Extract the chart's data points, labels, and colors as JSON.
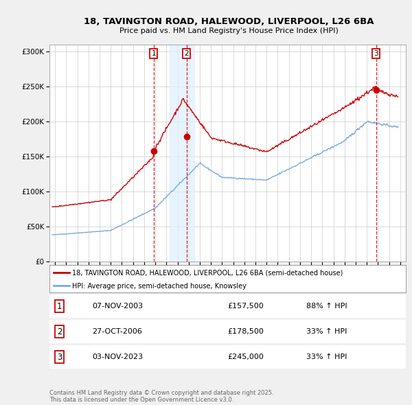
{
  "title_line1": "18, TAVINGTON ROAD, HALEWOOD, LIVERPOOL, L26 6BA",
  "title_line2": "Price paid vs. HM Land Registry's House Price Index (HPI)",
  "background_color": "#f0f0f0",
  "plot_bg_color": "#ffffff",
  "red_line_color": "#cc0000",
  "blue_line_color": "#7aaadd",
  "vline_color": "#cc0000",
  "highlight_color": "#ddeeff",
  "legend_label_red": "18, TAVINGTON ROAD, HALEWOOD, LIVERPOOL, L26 6BA (semi-detached house)",
  "legend_label_blue": "HPI: Average price, semi-detached house, Knowsley",
  "transactions": [
    {
      "label": "1",
      "date_num": 2003.85,
      "price": 157500,
      "date_str": "07-NOV-2003",
      "pct": "88% ↑ HPI"
    },
    {
      "label": "2",
      "date_num": 2006.82,
      "price": 178500,
      "date_str": "27-OCT-2006",
      "pct": "33% ↑ HPI"
    },
    {
      "label": "3",
      "date_num": 2023.84,
      "price": 245000,
      "date_str": "03-NOV-2023",
      "pct": "33% ↑ HPI"
    }
  ],
  "footer": "Contains HM Land Registry data © Crown copyright and database right 2025.\nThis data is licensed under the Open Government Licence v3.0.",
  "ylim": [
    0,
    310000
  ],
  "xlim": [
    1994.5,
    2026.5
  ],
  "yticks": [
    0,
    50000,
    100000,
    150000,
    200000,
    250000,
    300000
  ],
  "ytick_labels": [
    "£0",
    "£50K",
    "£100K",
    "£150K",
    "£200K",
    "£250K",
    "£300K"
  ],
  "highlight_xmin": 2005.3,
  "highlight_xmax": 2007.5
}
